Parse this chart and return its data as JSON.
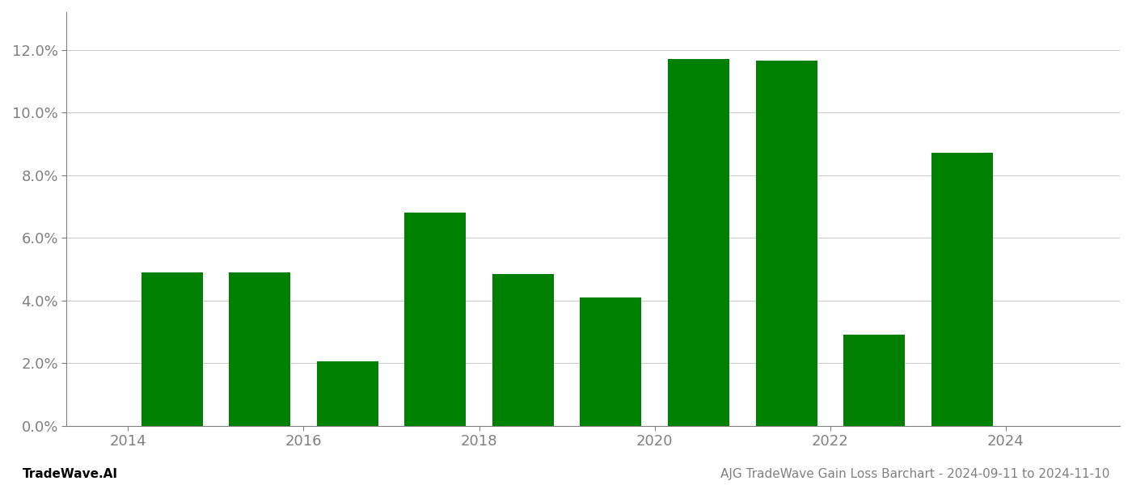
{
  "years": [
    2014,
    2015,
    2016,
    2017,
    2018,
    2019,
    2020,
    2021,
    2022,
    2023
  ],
  "values": [
    0.049,
    0.049,
    0.0205,
    0.068,
    0.0485,
    0.041,
    0.117,
    0.1165,
    0.029,
    0.087
  ],
  "bar_color": "#008000",
  "ylim": [
    0,
    0.132
  ],
  "yticks": [
    0.0,
    0.02,
    0.04,
    0.06,
    0.08,
    0.1,
    0.12
  ],
  "ytick_labels": [
    "0.0%",
    "2.0%",
    "4.0%",
    "6.0%",
    "8.0%",
    "10.0%",
    "12.0%"
  ],
  "xtick_positions": [
    2013.5,
    2015.5,
    2017.5,
    2019.5,
    2021.5,
    2023.5
  ],
  "xtick_labels": [
    "2014",
    "2016",
    "2018",
    "2020",
    "2022",
    "2024"
  ],
  "xlim": [
    2012.8,
    2024.8
  ],
  "footer_left": "TradeWave.AI",
  "footer_right": "AJG TradeWave Gain Loss Barchart - 2024-09-11 to 2024-11-10",
  "background_color": "#ffffff",
  "grid_color": "#cccccc",
  "text_color": "#808080",
  "footer_fontsize": 11,
  "tick_fontsize": 13
}
